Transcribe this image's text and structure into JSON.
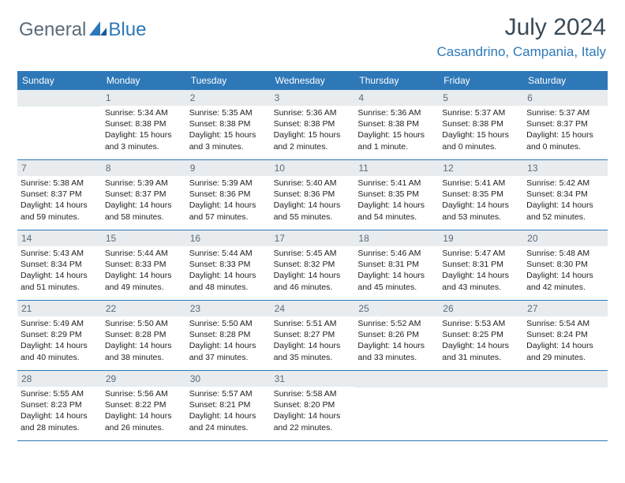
{
  "logo": {
    "general": "General",
    "blue": "Blue"
  },
  "title": {
    "month": "July 2024",
    "location": "Casandrino, Campania, Italy"
  },
  "colors": {
    "accent": "#2e78b8",
    "muted": "#5a6a78",
    "daybg": "#e8ecef"
  },
  "weekdays": [
    "Sunday",
    "Monday",
    "Tuesday",
    "Wednesday",
    "Thursday",
    "Friday",
    "Saturday"
  ],
  "weeks": [
    [
      {
        "n": "",
        "sr": "",
        "ss": "",
        "dl": ""
      },
      {
        "n": "1",
        "sr": "Sunrise: 5:34 AM",
        "ss": "Sunset: 8:38 PM",
        "dl": "Daylight: 15 hours and 3 minutes."
      },
      {
        "n": "2",
        "sr": "Sunrise: 5:35 AM",
        "ss": "Sunset: 8:38 PM",
        "dl": "Daylight: 15 hours and 3 minutes."
      },
      {
        "n": "3",
        "sr": "Sunrise: 5:36 AM",
        "ss": "Sunset: 8:38 PM",
        "dl": "Daylight: 15 hours and 2 minutes."
      },
      {
        "n": "4",
        "sr": "Sunrise: 5:36 AM",
        "ss": "Sunset: 8:38 PM",
        "dl": "Daylight: 15 hours and 1 minute."
      },
      {
        "n": "5",
        "sr": "Sunrise: 5:37 AM",
        "ss": "Sunset: 8:38 PM",
        "dl": "Daylight: 15 hours and 0 minutes."
      },
      {
        "n": "6",
        "sr": "Sunrise: 5:37 AM",
        "ss": "Sunset: 8:37 PM",
        "dl": "Daylight: 15 hours and 0 minutes."
      }
    ],
    [
      {
        "n": "7",
        "sr": "Sunrise: 5:38 AM",
        "ss": "Sunset: 8:37 PM",
        "dl": "Daylight: 14 hours and 59 minutes."
      },
      {
        "n": "8",
        "sr": "Sunrise: 5:39 AM",
        "ss": "Sunset: 8:37 PM",
        "dl": "Daylight: 14 hours and 58 minutes."
      },
      {
        "n": "9",
        "sr": "Sunrise: 5:39 AM",
        "ss": "Sunset: 8:36 PM",
        "dl": "Daylight: 14 hours and 57 minutes."
      },
      {
        "n": "10",
        "sr": "Sunrise: 5:40 AM",
        "ss": "Sunset: 8:36 PM",
        "dl": "Daylight: 14 hours and 55 minutes."
      },
      {
        "n": "11",
        "sr": "Sunrise: 5:41 AM",
        "ss": "Sunset: 8:35 PM",
        "dl": "Daylight: 14 hours and 54 minutes."
      },
      {
        "n": "12",
        "sr": "Sunrise: 5:41 AM",
        "ss": "Sunset: 8:35 PM",
        "dl": "Daylight: 14 hours and 53 minutes."
      },
      {
        "n": "13",
        "sr": "Sunrise: 5:42 AM",
        "ss": "Sunset: 8:34 PM",
        "dl": "Daylight: 14 hours and 52 minutes."
      }
    ],
    [
      {
        "n": "14",
        "sr": "Sunrise: 5:43 AM",
        "ss": "Sunset: 8:34 PM",
        "dl": "Daylight: 14 hours and 51 minutes."
      },
      {
        "n": "15",
        "sr": "Sunrise: 5:44 AM",
        "ss": "Sunset: 8:33 PM",
        "dl": "Daylight: 14 hours and 49 minutes."
      },
      {
        "n": "16",
        "sr": "Sunrise: 5:44 AM",
        "ss": "Sunset: 8:33 PM",
        "dl": "Daylight: 14 hours and 48 minutes."
      },
      {
        "n": "17",
        "sr": "Sunrise: 5:45 AM",
        "ss": "Sunset: 8:32 PM",
        "dl": "Daylight: 14 hours and 46 minutes."
      },
      {
        "n": "18",
        "sr": "Sunrise: 5:46 AM",
        "ss": "Sunset: 8:31 PM",
        "dl": "Daylight: 14 hours and 45 minutes."
      },
      {
        "n": "19",
        "sr": "Sunrise: 5:47 AM",
        "ss": "Sunset: 8:31 PM",
        "dl": "Daylight: 14 hours and 43 minutes."
      },
      {
        "n": "20",
        "sr": "Sunrise: 5:48 AM",
        "ss": "Sunset: 8:30 PM",
        "dl": "Daylight: 14 hours and 42 minutes."
      }
    ],
    [
      {
        "n": "21",
        "sr": "Sunrise: 5:49 AM",
        "ss": "Sunset: 8:29 PM",
        "dl": "Daylight: 14 hours and 40 minutes."
      },
      {
        "n": "22",
        "sr": "Sunrise: 5:50 AM",
        "ss": "Sunset: 8:28 PM",
        "dl": "Daylight: 14 hours and 38 minutes."
      },
      {
        "n": "23",
        "sr": "Sunrise: 5:50 AM",
        "ss": "Sunset: 8:28 PM",
        "dl": "Daylight: 14 hours and 37 minutes."
      },
      {
        "n": "24",
        "sr": "Sunrise: 5:51 AM",
        "ss": "Sunset: 8:27 PM",
        "dl": "Daylight: 14 hours and 35 minutes."
      },
      {
        "n": "25",
        "sr": "Sunrise: 5:52 AM",
        "ss": "Sunset: 8:26 PM",
        "dl": "Daylight: 14 hours and 33 minutes."
      },
      {
        "n": "26",
        "sr": "Sunrise: 5:53 AM",
        "ss": "Sunset: 8:25 PM",
        "dl": "Daylight: 14 hours and 31 minutes."
      },
      {
        "n": "27",
        "sr": "Sunrise: 5:54 AM",
        "ss": "Sunset: 8:24 PM",
        "dl": "Daylight: 14 hours and 29 minutes."
      }
    ],
    [
      {
        "n": "28",
        "sr": "Sunrise: 5:55 AM",
        "ss": "Sunset: 8:23 PM",
        "dl": "Daylight: 14 hours and 28 minutes."
      },
      {
        "n": "29",
        "sr": "Sunrise: 5:56 AM",
        "ss": "Sunset: 8:22 PM",
        "dl": "Daylight: 14 hours and 26 minutes."
      },
      {
        "n": "30",
        "sr": "Sunrise: 5:57 AM",
        "ss": "Sunset: 8:21 PM",
        "dl": "Daylight: 14 hours and 24 minutes."
      },
      {
        "n": "31",
        "sr": "Sunrise: 5:58 AM",
        "ss": "Sunset: 8:20 PM",
        "dl": "Daylight: 14 hours and 22 minutes."
      },
      {
        "n": "",
        "sr": "",
        "ss": "",
        "dl": ""
      },
      {
        "n": "",
        "sr": "",
        "ss": "",
        "dl": ""
      },
      {
        "n": "",
        "sr": "",
        "ss": "",
        "dl": ""
      }
    ]
  ]
}
